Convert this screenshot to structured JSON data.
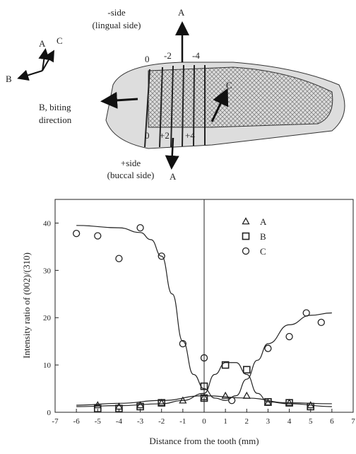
{
  "diagram": {
    "axis_a": "A",
    "axis_c": "C",
    "axis_b": "B",
    "minus_side": "-side",
    "lingual": "(lingual side)",
    "top_a": "A",
    "pos_0": "0",
    "pos_m2": "-2",
    "pos_m4": "-4",
    "arrow_c": "C",
    "biting_1": "B, biting",
    "biting_2": "direction",
    "pos_b0": "0",
    "pos_p2": "+2",
    "pos_p4": "+4",
    "plus_side": "+side",
    "buccal": "(buccal side)",
    "bottom_a": "A"
  },
  "chart_data": {
    "type": "scatter",
    "xlabel": "Distance from the tooth (mm)",
    "ylabel": "Intensity ratio of (002)/(310)",
    "xlim": [
      -7,
      7
    ],
    "ylim": [
      0,
      45
    ],
    "xticks": [
      -7,
      -6,
      -5,
      -4,
      -3,
      -2,
      -1,
      0,
      1,
      2,
      3,
      4,
      5,
      6,
      7
    ],
    "yticks": [
      0,
      10,
      20,
      30,
      40
    ],
    "reference_x": 0,
    "series": [
      {
        "name": "A",
        "marker": "triangle",
        "color": "#222222",
        "x": [
          -5,
          -4,
          -3,
          -2,
          -1,
          0,
          1,
          2,
          3,
          4,
          5
        ],
        "values": [
          1.5,
          1.2,
          1.5,
          2,
          2.5,
          3.2,
          3.5,
          3.5,
          2,
          2,
          1.5
        ],
        "fit": {
          "x": [
            -6,
            -4,
            -2,
            0,
            2,
            4,
            6
          ],
          "values": [
            1.5,
            1.9,
            2.5,
            3.5,
            3,
            2,
            1.8
          ]
        }
      },
      {
        "name": "B",
        "marker": "square",
        "color": "#222222",
        "x": [
          -5,
          -4,
          -3,
          -2,
          0,
          0,
          1,
          2,
          3,
          4,
          5
        ],
        "values": [
          0.8,
          0.8,
          1.2,
          2,
          5.5,
          3,
          10,
          9,
          2.2,
          2,
          1.2
        ],
        "fit": {
          "x": [
            -6,
            -4,
            -2,
            -1,
            0,
            0.5,
            1,
            1.5,
            2,
            2.5,
            3,
            4,
            6
          ],
          "values": [
            1.2,
            1.4,
            1.8,
            2.5,
            4,
            8,
            10.5,
            10.5,
            8,
            4,
            2.2,
            1.8,
            1.2
          ]
        }
      },
      {
        "name": "C",
        "marker": "circle",
        "color": "#222222",
        "x": [
          -6,
          -5,
          -4,
          -3,
          -2,
          -1,
          0,
          1.3,
          3,
          4,
          4.8,
          5.5
        ],
        "values": [
          37.8,
          37.3,
          32.5,
          39,
          33,
          14.5,
          11.5,
          2.5,
          13.5,
          16,
          21,
          19
        ],
        "fit": {
          "x": [
            -6,
            -4,
            -3,
            -2.5,
            -2,
            -1.5,
            -1,
            -0.5,
            0,
            0.5,
            1,
            1.5,
            2,
            2.5,
            3,
            4,
            5,
            6
          ],
          "values": [
            39.5,
            39,
            38,
            36.5,
            33,
            25,
            15,
            8,
            5,
            3,
            2.5,
            3.5,
            7,
            11,
            14.5,
            18.5,
            20.5,
            21
          ]
        }
      }
    ]
  }
}
